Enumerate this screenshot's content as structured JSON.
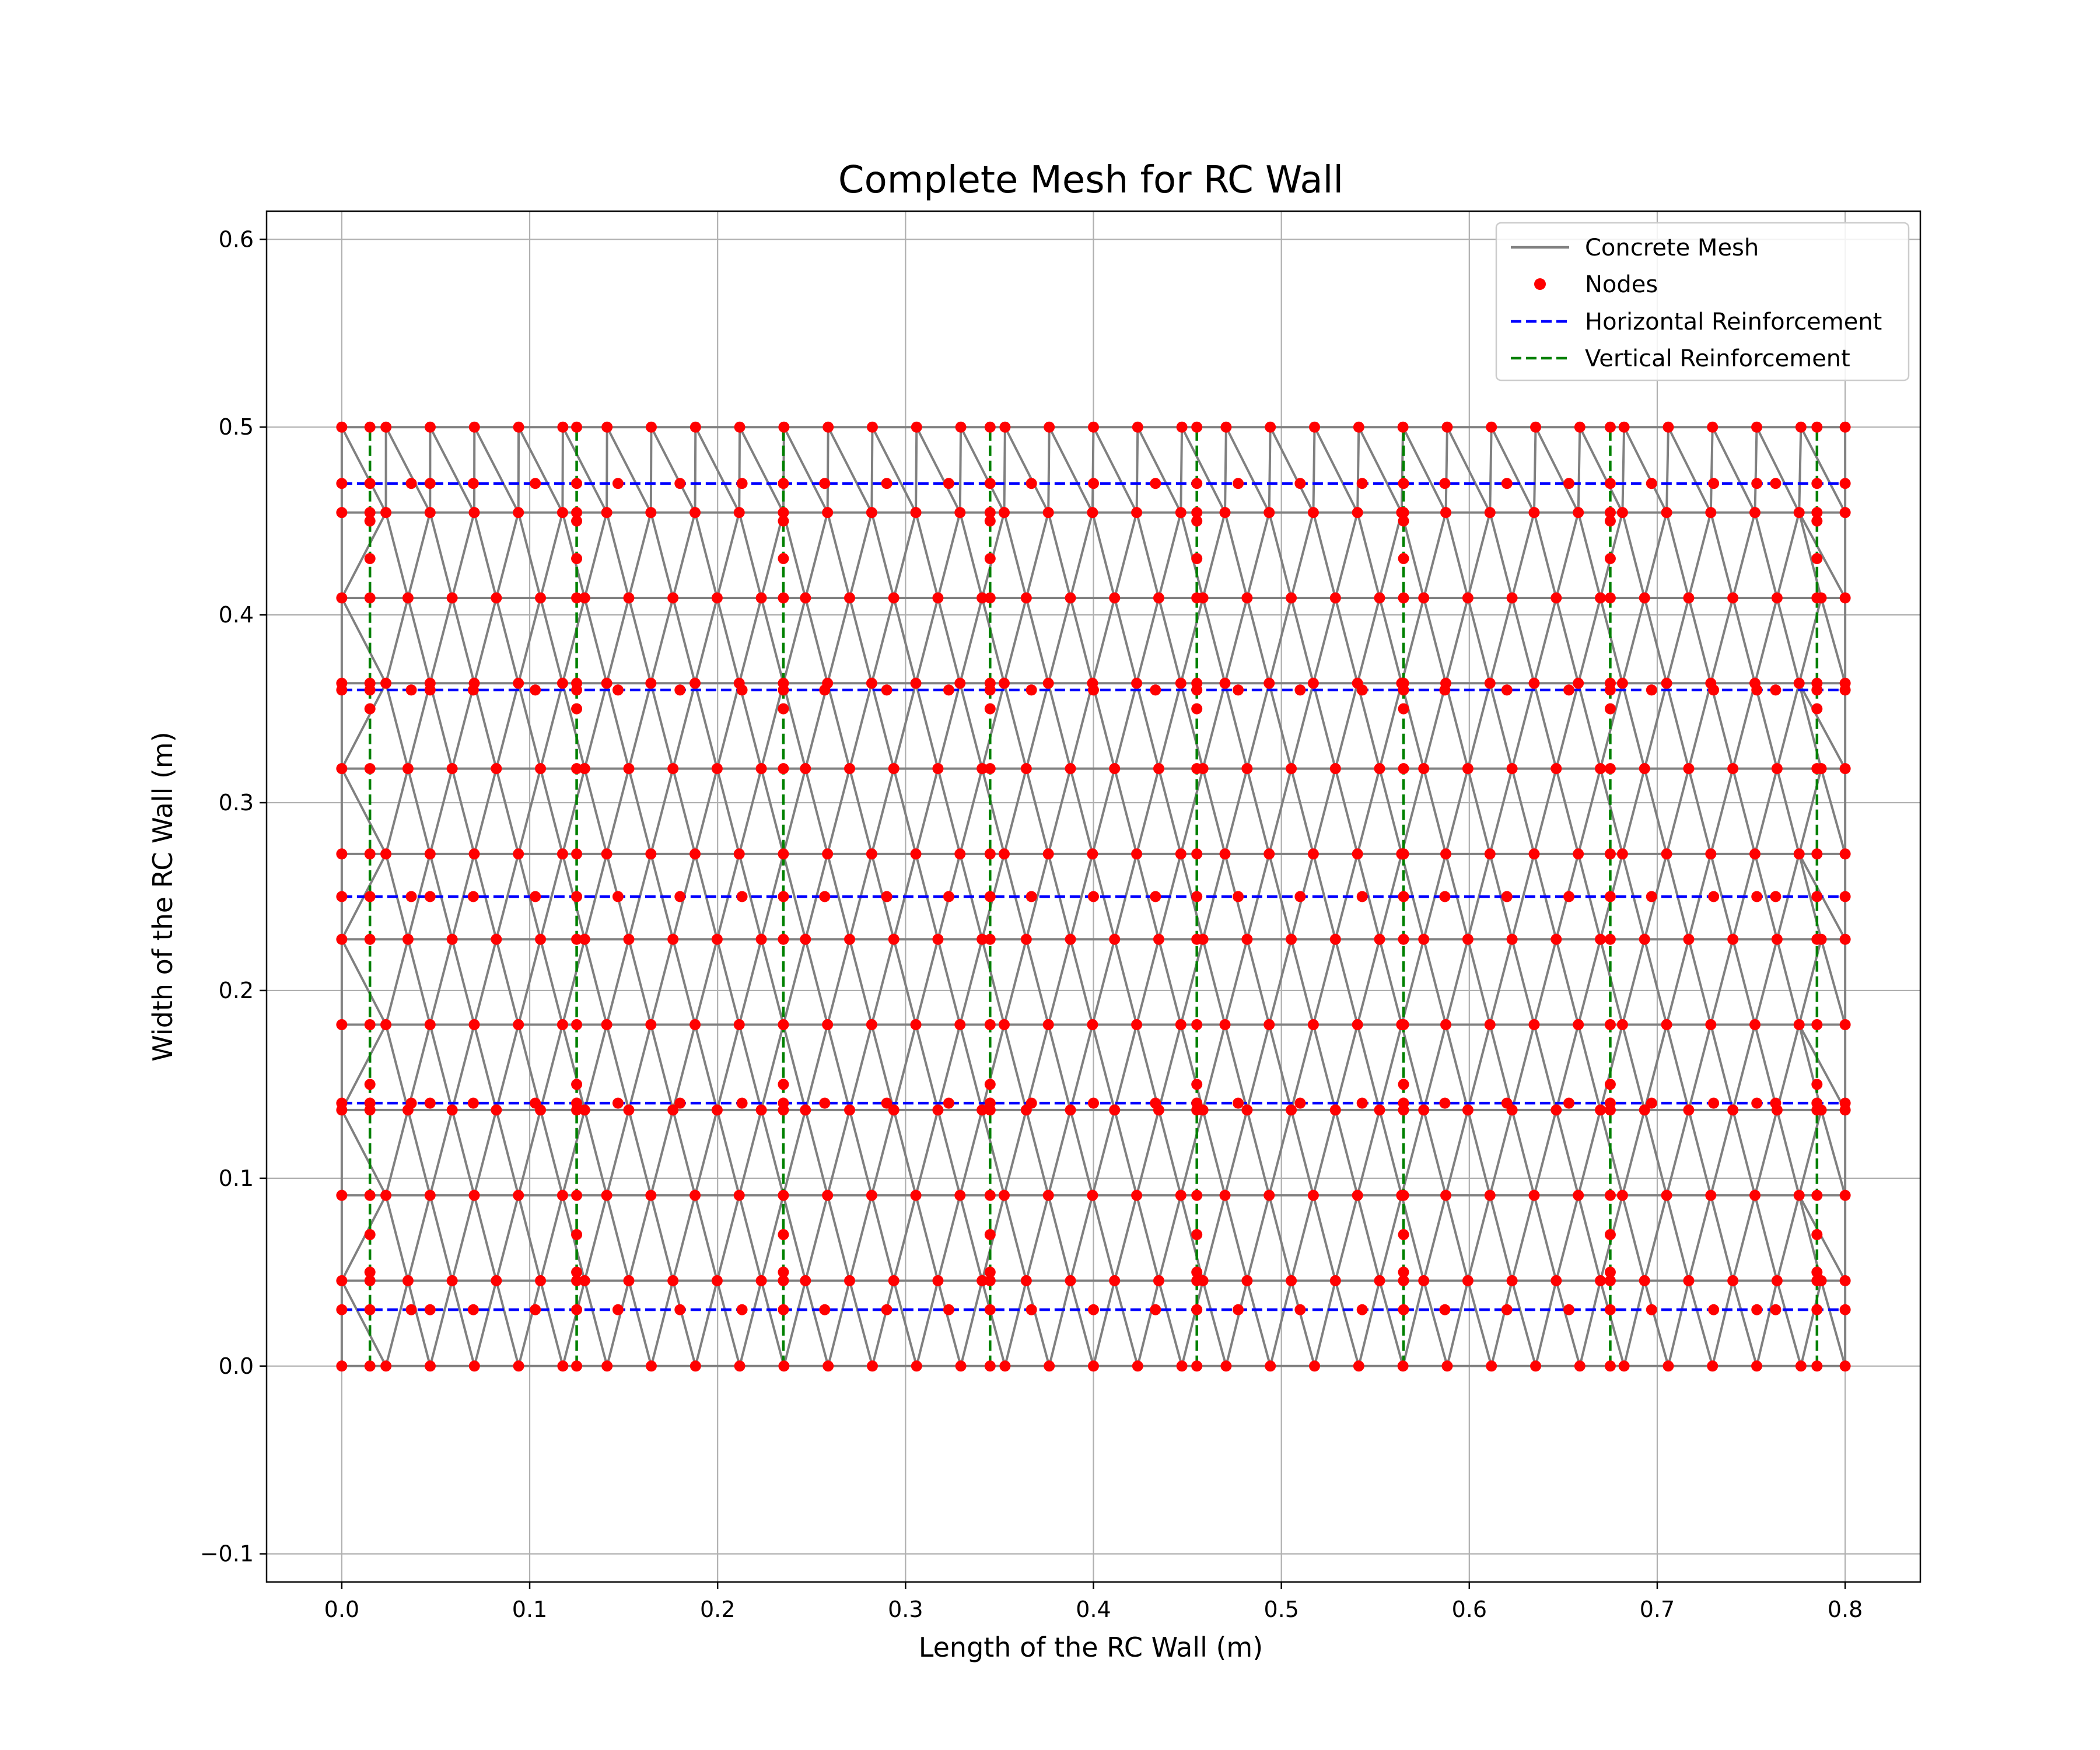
{
  "chart_data": {
    "type": "scatter",
    "title": "Complete Mesh for RC Wall",
    "xlabel": "Length of the RC Wall (m)",
    "ylabel": "Width of the RC Wall (m)",
    "xlim": [
      -0.04,
      0.84
    ],
    "ylim": [
      -0.115,
      0.615
    ],
    "xticks": [
      0.0,
      0.1,
      0.2,
      0.3,
      0.4,
      0.5,
      0.6,
      0.7,
      0.8
    ],
    "xtick_labels": [
      "0.0",
      "0.1",
      "0.2",
      "0.3",
      "0.4",
      "0.5",
      "0.6",
      "0.7",
      "0.8"
    ],
    "yticks": [
      -0.1,
      0.0,
      0.1,
      0.2,
      0.3,
      0.4,
      0.5,
      0.6
    ],
    "ytick_labels": [
      "−0.1",
      "0.0",
      "0.1",
      "0.2",
      "0.3",
      "0.4",
      "0.5",
      "0.6"
    ],
    "grid": true,
    "legend_position": "top-right",
    "wall_extent": {
      "length": 0.8,
      "width": 0.5
    },
    "series": [
      {
        "name": "Concrete Mesh",
        "kind": "line",
        "color": "#808080"
      },
      {
        "name": "Nodes",
        "kind": "marker",
        "color": "#ff0000"
      },
      {
        "name": "Horizontal Reinforcement",
        "kind": "dashed",
        "color": "#0000ff",
        "y_positions": [
          0.03,
          0.14,
          0.25,
          0.36,
          0.47
        ],
        "x_range": [
          0.0,
          0.8
        ]
      },
      {
        "name": "Vertical Reinforcement",
        "kind": "dashed",
        "color": "#008000",
        "x_positions": [
          0.015,
          0.125,
          0.235,
          0.345,
          0.455,
          0.565,
          0.675,
          0.785
        ],
        "y_range": [
          0.0,
          0.5
        ]
      }
    ],
    "mesh": {
      "row_spacing": 0.04545,
      "row_count": 12,
      "column_spacing": 0.0235,
      "rebar_node_fractions": [
        0.06,
        0.1,
        0.14,
        0.3,
        0.5,
        0.7,
        0.86,
        0.9,
        0.94
      ]
    }
  }
}
